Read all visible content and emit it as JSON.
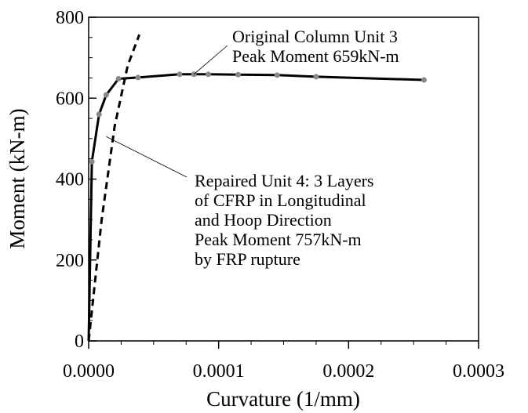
{
  "chart_data": {
    "type": "line",
    "title": "",
    "xlabel": "Curvature (1/mm)",
    "ylabel": "Moment (kN-m)",
    "xlim": [
      0,
      0.0003
    ],
    "ylim": [
      0,
      800
    ],
    "xticks": [
      0,
      0.0001,
      0.0002,
      0.0003
    ],
    "xtick_labels": [
      "0.0000",
      "0.0001",
      "0.0002",
      "0.0003"
    ],
    "yticks": [
      0,
      200,
      400,
      600,
      800
    ],
    "ytick_labels": [
      "0",
      "200",
      "400",
      "600",
      "800"
    ],
    "grid": false,
    "series": [
      {
        "style": "solid",
        "color": "#000000",
        "marker_color": "#888888",
        "x": [
          0,
          2.5e-06,
          8e-06,
          1.35e-05,
          2.3e-05,
          3.8e-05,
          7e-05,
          8.1e-05,
          9.2e-05,
          0.000115,
          0.000145,
          0.000175,
          0.000258
        ],
        "y": [
          0,
          443,
          560,
          608,
          648,
          651,
          659,
          659,
          659,
          658,
          657,
          653,
          645
        ]
      },
      {
        "style": "dashed",
        "color": "#000000",
        "markers": false,
        "x": [
          0,
          1e-05,
          2e-05,
          3e-05,
          3.9e-05
        ],
        "y": [
          0,
          300,
          530,
          680,
          757
        ]
      }
    ],
    "annotations": [
      {
        "lines": [
          "Original Column Unit 3",
          "Peak Moment 659kN-m"
        ],
        "target": [
          8.1e-05,
          659
        ]
      },
      {
        "lines": [
          "Repaired Unit 4: 3 Layers",
          "of CFRP in Longitudinal",
          "and Hoop Direction",
          "Peak Moment 757kN-m",
          "by FRP rupture"
        ],
        "target": [
          1.35e-05,
          505
        ]
      }
    ]
  }
}
